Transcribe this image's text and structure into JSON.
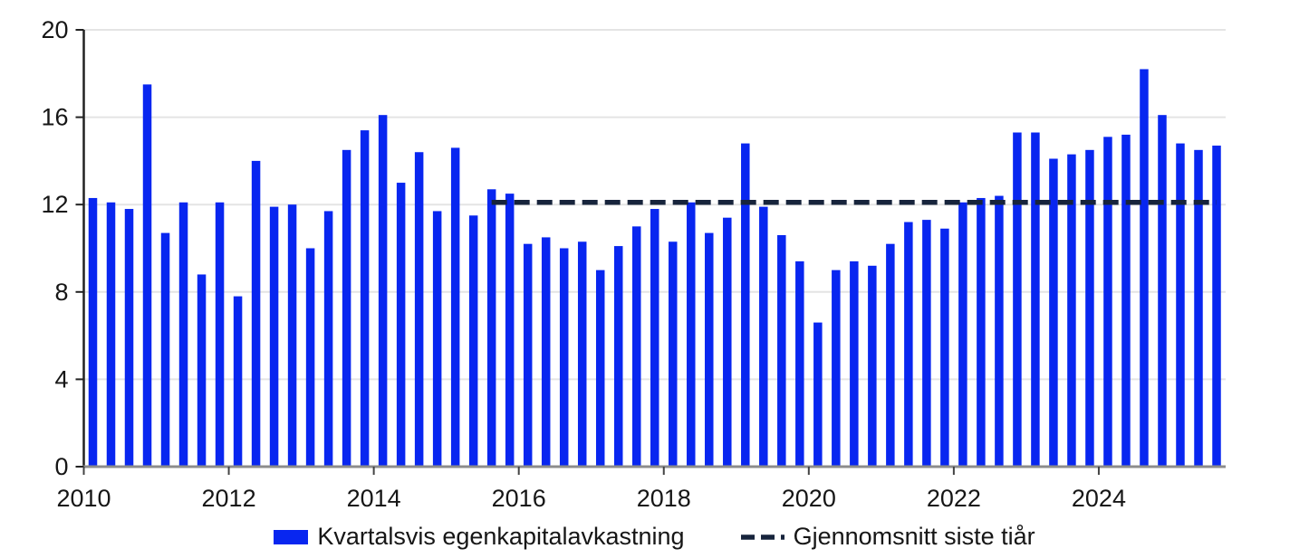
{
  "chart_data": {
    "type": "bar",
    "title": "",
    "xlabel": "",
    "ylabel": "",
    "ylim": [
      0,
      20
    ],
    "y_ticks": [
      0,
      4,
      8,
      12,
      16,
      20
    ],
    "x_tick_labels": [
      "2010",
      "2012",
      "2014",
      "2016",
      "2018",
      "2020",
      "2022",
      "2024"
    ],
    "x_tick_years": [
      2010,
      2012,
      2014,
      2016,
      2018,
      2020,
      2022,
      2024
    ],
    "grid": true,
    "legend_position": "bottom",
    "background_color": "#ffffff",
    "gridline_color": "#e4e4e4",
    "y_axis_color": "#222222",
    "x_axis_color": "#8c8c8c",
    "axis_text_color": "#161616",
    "categories": [
      "2010Q1",
      "2010Q2",
      "2010Q3",
      "2010Q4",
      "2011Q1",
      "2011Q2",
      "2011Q3",
      "2011Q4",
      "2012Q1",
      "2012Q2",
      "2012Q3",
      "2012Q4",
      "2013Q1",
      "2013Q2",
      "2013Q3",
      "2013Q4",
      "2014Q1",
      "2014Q2",
      "2014Q3",
      "2014Q4",
      "2015Q1",
      "2015Q2",
      "2015Q3",
      "2015Q4",
      "2016Q1",
      "2016Q2",
      "2016Q3",
      "2016Q4",
      "2017Q1",
      "2017Q2",
      "2017Q3",
      "2017Q4",
      "2018Q1",
      "2018Q2",
      "2018Q3",
      "2018Q4",
      "2019Q1",
      "2019Q2",
      "2019Q3",
      "2019Q4",
      "2020Q1",
      "2020Q2",
      "2020Q3",
      "2020Q4",
      "2021Q1",
      "2021Q2",
      "2021Q3",
      "2021Q4",
      "2022Q1",
      "2022Q2",
      "2022Q3",
      "2022Q4",
      "2023Q1",
      "2023Q2",
      "2023Q3",
      "2023Q4",
      "2024Q1",
      "2024Q2",
      "2024Q3",
      "2024Q4",
      "2025Q1",
      "2025Q2",
      "2025Q3"
    ],
    "series": [
      {
        "name": "Kvartalsvis egenkapitalavkastning",
        "type": "bar",
        "color": "#0826f0",
        "values": [
          12.3,
          12.1,
          11.8,
          17.5,
          10.7,
          12.1,
          8.8,
          12.1,
          7.8,
          14.0,
          11.9,
          12.0,
          10.0,
          11.7,
          14.5,
          15.4,
          16.1,
          13.0,
          14.4,
          11.7,
          14.6,
          11.5,
          12.7,
          12.5,
          10.2,
          10.5,
          10.0,
          10.3,
          9.0,
          10.1,
          11.0,
          11.8,
          10.3,
          12.1,
          10.7,
          11.4,
          14.8,
          11.9,
          10.6,
          9.4,
          6.6,
          9.0,
          9.4,
          9.2,
          10.2,
          11.2,
          11.3,
          10.9,
          12.1,
          12.3,
          12.4,
          15.3,
          15.3,
          14.1,
          14.3,
          14.5,
          15.1,
          15.2,
          18.2,
          16.1,
          14.8,
          14.5,
          14.7
        ]
      },
      {
        "name": "Gjennomsnitt siste tiår",
        "type": "dashed_line",
        "color": "#17243c",
        "value": 12.1,
        "from": "2015Q3",
        "to": "2025Q3"
      }
    ]
  }
}
